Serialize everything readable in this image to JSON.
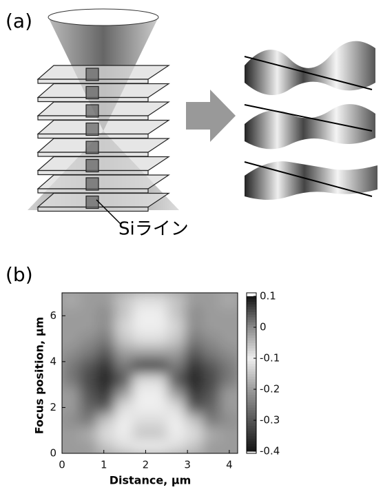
{
  "panel_a": {
    "label": "(a)",
    "annotation": "Siライン"
  },
  "panel_b_label": "(b)",
  "chart_data": {
    "type": "heatmap",
    "xlabel": "Distance, μm",
    "ylabel": "Focus position, μm",
    "xlim": [
      0,
      4.2
    ],
    "ylim": [
      0,
      7
    ],
    "xticks": [
      0,
      1,
      2,
      3,
      4
    ],
    "yticks": [
      0,
      2,
      4,
      6
    ],
    "clim": [
      -0.4,
      0.1
    ],
    "cticks": [
      0.1,
      0,
      -0.1,
      -0.2,
      -0.3,
      -0.4
    ],
    "x": [
      0.21,
      0.63,
      1.05,
      1.47,
      1.89,
      2.31,
      2.73,
      3.15,
      3.57,
      3.99
    ],
    "y": [
      0.29,
      0.88,
      1.46,
      2.04,
      2.63,
      3.21,
      3.79,
      4.38,
      4.96,
      5.54,
      6.13,
      6.71
    ],
    "z": [
      [
        -0.2,
        -0.2,
        -0.15,
        -0.12,
        -0.1,
        -0.1,
        -0.12,
        -0.15,
        -0.2,
        -0.2
      ],
      [
        -0.2,
        -0.18,
        -0.12,
        -0.1,
        -0.15,
        -0.15,
        -0.1,
        -0.12,
        -0.18,
        -0.2
      ],
      [
        -0.22,
        -0.25,
        -0.15,
        -0.1,
        -0.12,
        -0.12,
        -0.1,
        -0.15,
        -0.25,
        -0.22
      ],
      [
        -0.2,
        -0.28,
        -0.3,
        -0.12,
        -0.1,
        -0.1,
        -0.12,
        -0.3,
        -0.28,
        -0.2
      ],
      [
        -0.2,
        -0.3,
        -0.35,
        -0.2,
        -0.1,
        -0.1,
        -0.2,
        -0.35,
        -0.3,
        -0.2
      ],
      [
        -0.25,
        -0.32,
        -0.38,
        -0.3,
        -0.12,
        -0.12,
        -0.3,
        -0.38,
        -0.32,
        -0.25
      ],
      [
        -0.25,
        -0.3,
        -0.36,
        -0.25,
        -0.35,
        -0.35,
        -0.25,
        -0.36,
        -0.3,
        -0.25
      ],
      [
        -0.22,
        -0.25,
        -0.3,
        -0.2,
        -0.2,
        -0.2,
        -0.2,
        -0.3,
        -0.25,
        -0.22
      ],
      [
        -0.2,
        -0.22,
        -0.25,
        -0.15,
        -0.12,
        -0.12,
        -0.15,
        -0.25,
        -0.22,
        -0.2
      ],
      [
        -0.2,
        -0.2,
        -0.22,
        -0.13,
        -0.1,
        -0.1,
        -0.13,
        -0.22,
        -0.2,
        -0.2
      ],
      [
        -0.2,
        -0.2,
        -0.22,
        -0.15,
        -0.1,
        -0.1,
        -0.15,
        -0.22,
        -0.2,
        -0.2
      ],
      [
        -0.18,
        -0.2,
        -0.2,
        -0.15,
        -0.12,
        -0.12,
        -0.15,
        -0.2,
        -0.2,
        -0.18
      ]
    ]
  }
}
